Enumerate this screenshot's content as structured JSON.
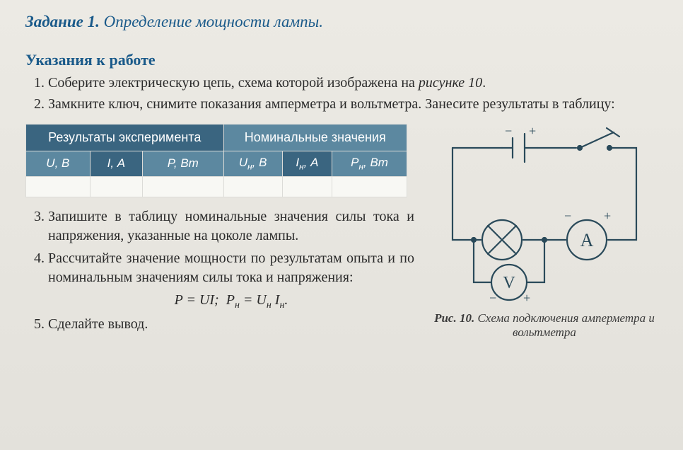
{
  "task": {
    "label": "Задание 1.",
    "title": "Определение мощности лампы."
  },
  "section_title": "Указания к работе",
  "steps_a": [
    {
      "text_parts": [
        "Соберите электрическую цепь, схема которой изображена на ",
        "рисунке 10",
        "."
      ]
    },
    {
      "text_parts": [
        "Замкните ключ, снимите показания амперметра и вольтметра. Занесите результаты в таблицу:"
      ]
    }
  ],
  "table": {
    "header_colors": {
      "dark": "#3a6580",
      "light": "#5c88a0"
    },
    "group_headers": [
      "Результаты эксперимента",
      "Номинальные значения"
    ],
    "sub_headers": [
      "U, В",
      "I, А",
      "P, Вт",
      "Uн, В",
      "Iн, А",
      "Pн, Вт"
    ],
    "rows": [
      [
        "",
        "",
        "",
        "",
        "",
        ""
      ]
    ]
  },
  "steps_b": [
    "Запишите в таблицу номинальные значения силы тока и напряжения, указанные на цоколе лампы.",
    "Рассчитайте значение мощности по результатам опыта и по номинальным значениям силы тока и напряжения:",
    "Сделайте вывод."
  ],
  "formula": "P = UI;  Pн = Uн Iн.",
  "figure": {
    "label": "Рис. 10.",
    "caption": "Схема подключения амперметра и вольтметра",
    "colors": {
      "stroke": "#2a4a5a",
      "bg": "none"
    }
  }
}
